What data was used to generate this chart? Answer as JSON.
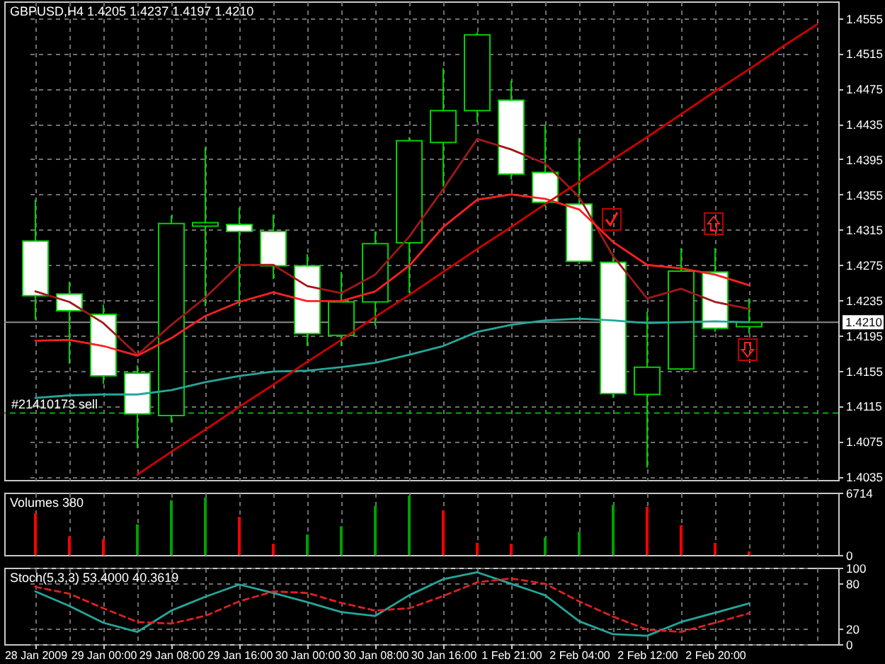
{
  "chart_data": [
    {
      "type": "candlestick",
      "title": "GBPUSD,H4 1.4205 1.4237 1.4197 1.4210",
      "categories": [
        null,
        null,
        null,
        null,
        null,
        null,
        null,
        null,
        null,
        null,
        null,
        null,
        null,
        null,
        null,
        null,
        null,
        null,
        null,
        null,
        null,
        null,
        null,
        null
      ],
      "series": [
        {
          "color": "#00d000",
          "colors": [
            "#ffffff",
            "#ffffff",
            "#ffffff",
            "#ffffff",
            "#000000",
            "#000000",
            "#ffffff",
            "#ffffff",
            "#ffffff",
            "#000000",
            "#000000",
            "#000000",
            "#000000",
            "#000000",
            "#ffffff",
            "#ffffff",
            "#ffffff",
            "#ffffff",
            "#000000",
            "#000000",
            "#ffffff",
            "#000000",
            null,
            null
          ],
          "ohlc": [
            [
              1.4302,
              1.4349,
              1.4213,
              1.424
            ],
            [
              1.4242,
              1.4256,
              1.4163,
              1.4223
            ],
            [
              1.4219,
              1.423,
              1.414,
              1.4149
            ],
            [
              1.4152,
              1.4161,
              1.4067,
              1.4106
            ],
            [
              1.4104,
              1.4331,
              1.4096,
              1.4322
            ],
            [
              1.4319,
              1.4409,
              1.4228,
              1.4323
            ],
            [
              1.4321,
              1.434,
              1.4228,
              1.4313
            ],
            [
              1.4313,
              1.4332,
              1.4259,
              1.4274
            ],
            [
              1.4274,
              1.4287,
              1.4183,
              1.4197
            ],
            [
              1.4195,
              1.4267,
              1.4183,
              1.4233
            ],
            [
              1.4233,
              1.4313,
              1.4206,
              1.4299
            ],
            [
              1.43,
              1.442,
              1.4243,
              1.4416
            ],
            [
              1.4414,
              1.4498,
              1.4364,
              1.445
            ],
            [
              1.445,
              1.4539,
              1.4437,
              1.4536
            ],
            [
              1.4462,
              1.4484,
              1.4372,
              1.4378
            ],
            [
              1.438,
              1.4434,
              1.4341,
              1.4346
            ],
            [
              1.4344,
              1.4419,
              1.4276,
              1.4279
            ],
            [
              1.4278,
              1.4287,
              1.4124,
              1.4129
            ],
            [
              1.4128,
              1.4222,
              1.4045,
              1.4159
            ],
            [
              1.4157,
              1.4294,
              1.4156,
              1.4268
            ],
            [
              1.4267,
              1.4294,
              1.4199,
              1.4203
            ],
            [
              1.4205,
              1.4237,
              1.4197,
              1.421
            ],
            null,
            null
          ]
        },
        {
          "type": "line",
          "color": "#a01818",
          "values": [
            1.4245,
            1.4233,
            1.4209,
            1.4173,
            1.4207,
            1.4238,
            1.4275,
            1.4275,
            1.4251,
            1.4243,
            1.4264,
            1.4307,
            1.4361,
            1.4418,
            1.4406,
            1.439,
            1.4352,
            1.4285,
            1.4237,
            1.4248,
            1.4233,
            1.4225,
            null,
            null
          ]
        },
        {
          "type": "line",
          "color": "#ff2020",
          "values": [
            1.4189,
            1.419,
            1.4183,
            1.4172,
            1.4192,
            1.4217,
            1.4233,
            1.4244,
            1.4234,
            1.4234,
            1.4245,
            1.4274,
            1.4318,
            1.4349,
            1.4355,
            1.435,
            1.4338,
            1.4301,
            1.4275,
            1.4271,
            1.4264,
            1.4252,
            null,
            null
          ]
        },
        {
          "type": "line",
          "color": "#26a69a",
          "values": [
            1.4124,
            1.4127,
            1.4128,
            1.4128,
            1.4133,
            1.4142,
            1.4149,
            1.4154,
            1.4155,
            1.4159,
            1.4164,
            1.4173,
            1.4183,
            1.4199,
            1.4207,
            1.4212,
            1.4214,
            1.4212,
            1.4209,
            1.421,
            1.4211,
            1.421,
            null,
            null
          ]
        },
        {
          "type": "line",
          "color": "#d00000",
          "values": [
            null,
            null,
            null,
            1.4037,
            1.4063,
            1.4088,
            1.4114,
            1.4139,
            1.4165,
            1.419,
            1.4216,
            1.4241,
            1.4267,
            1.4293,
            1.4318,
            1.4344,
            1.4369,
            1.4395,
            1.442,
            1.4446,
            1.4472,
            1.4497,
            1.4523,
            1.4548
          ]
        }
      ],
      "ylim": [
        1.4031,
        1.4574
      ],
      "yticks": [
        1.4035,
        1.4075,
        1.4115,
        1.4155,
        1.4195,
        1.4235,
        1.4275,
        1.4315,
        1.4355,
        1.4395,
        1.4435,
        1.4475,
        1.4515,
        1.4555
      ],
      "ref_lines": [
        {
          "axis": "y",
          "value": 1.4107,
          "label": "#21410173 sell",
          "color": "#00b000",
          "line_style": "dashed"
        },
        {
          "axis": "y",
          "value": 1.421,
          "label": "1.4210",
          "color": "#8c8c8c"
        }
      ],
      "grid": true
    },
    {
      "type": "bar",
      "title": "Volumes 380",
      "categories": [
        null,
        null,
        null,
        null,
        null,
        null,
        null,
        null,
        null,
        null,
        null,
        null,
        null,
        null,
        null,
        null,
        null,
        null,
        null,
        null,
        null,
        null,
        null,
        null
      ],
      "values": [
        4500,
        2000,
        1700,
        3300,
        5900,
        6200,
        4100,
        1200,
        2200,
        3100,
        5300,
        6400,
        4800,
        1300,
        1200,
        1900,
        2500,
        5400,
        5200,
        3200,
        1300,
        380,
        null,
        null
      ],
      "colors": [
        "#ff0000",
        "#ff0000",
        "#ff0000",
        "#00a000",
        "#00a000",
        "#00a000",
        "#ff0000",
        "#ff0000",
        "#00a000",
        "#00a000",
        "#00a000",
        "#00a000",
        "#ff0000",
        "#ff0000",
        "#ff0000",
        "#00a000",
        "#00a000",
        "#00a000",
        "#ff0000",
        "#ff0000",
        "#ff0000",
        "#ff0000",
        null,
        null
      ],
      "ylim": [
        0,
        6714
      ],
      "yticks": [
        0,
        6714
      ],
      "grid": "x"
    },
    {
      "type": "line",
      "title": "Stoch(5,3,3) 53.4000 40.3619",
      "categories": [
        "28 Jan 2009",
        null,
        "29 Jan 00:00",
        null,
        "29 Jan 08:00",
        null,
        "29 Jan 16:00",
        null,
        "30 Jan 00:00",
        null,
        "30 Jan 08:00",
        null,
        "30 Jan 16:00",
        null,
        "1 Feb 21:00",
        null,
        "2 Feb 04:00",
        null,
        "2 Feb 12:00",
        null,
        "2 Feb 20:00",
        null,
        null,
        null
      ],
      "series": [
        {
          "color": "#26a69a",
          "values": [
            69,
            50,
            28,
            16,
            44,
            62,
            78,
            67,
            55,
            42,
            37,
            64,
            85,
            94,
            79,
            64,
            30,
            13,
            11,
            29,
            41,
            53.4,
            null,
            null
          ]
        },
        {
          "color": "#e02020",
          "line_style": "dashed",
          "values": [
            75,
            66,
            47,
            29,
            27,
            37,
            56,
            69,
            67,
            54,
            44,
            47,
            63,
            81,
            86,
            79,
            56,
            36,
            19,
            16,
            28,
            40.3619,
            null,
            null
          ]
        }
      ],
      "ylim": [
        0,
        100
      ],
      "yticks": [
        0,
        20,
        80,
        100
      ],
      "grid": true
    }
  ]
}
